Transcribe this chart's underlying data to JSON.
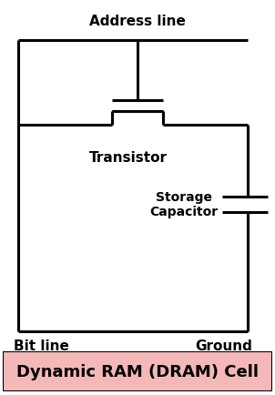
{
  "title": "Dynamic RAM (DRAM) Cell",
  "title_bg": "#f4b8b8",
  "title_fontsize": 13,
  "label_address": "Address line",
  "label_transistor": "Transistor",
  "label_storage": "Storage\nCapacitor",
  "label_bitline": "Bit line",
  "label_ground": "Ground",
  "line_color": "#000000",
  "line_width": 2.2,
  "bg_color": "#ffffff",
  "fig_width": 3.02,
  "fig_height": 4.35,
  "dpi": 100,
  "label_fontsize": 11,
  "cap_label_fontsize": 10
}
